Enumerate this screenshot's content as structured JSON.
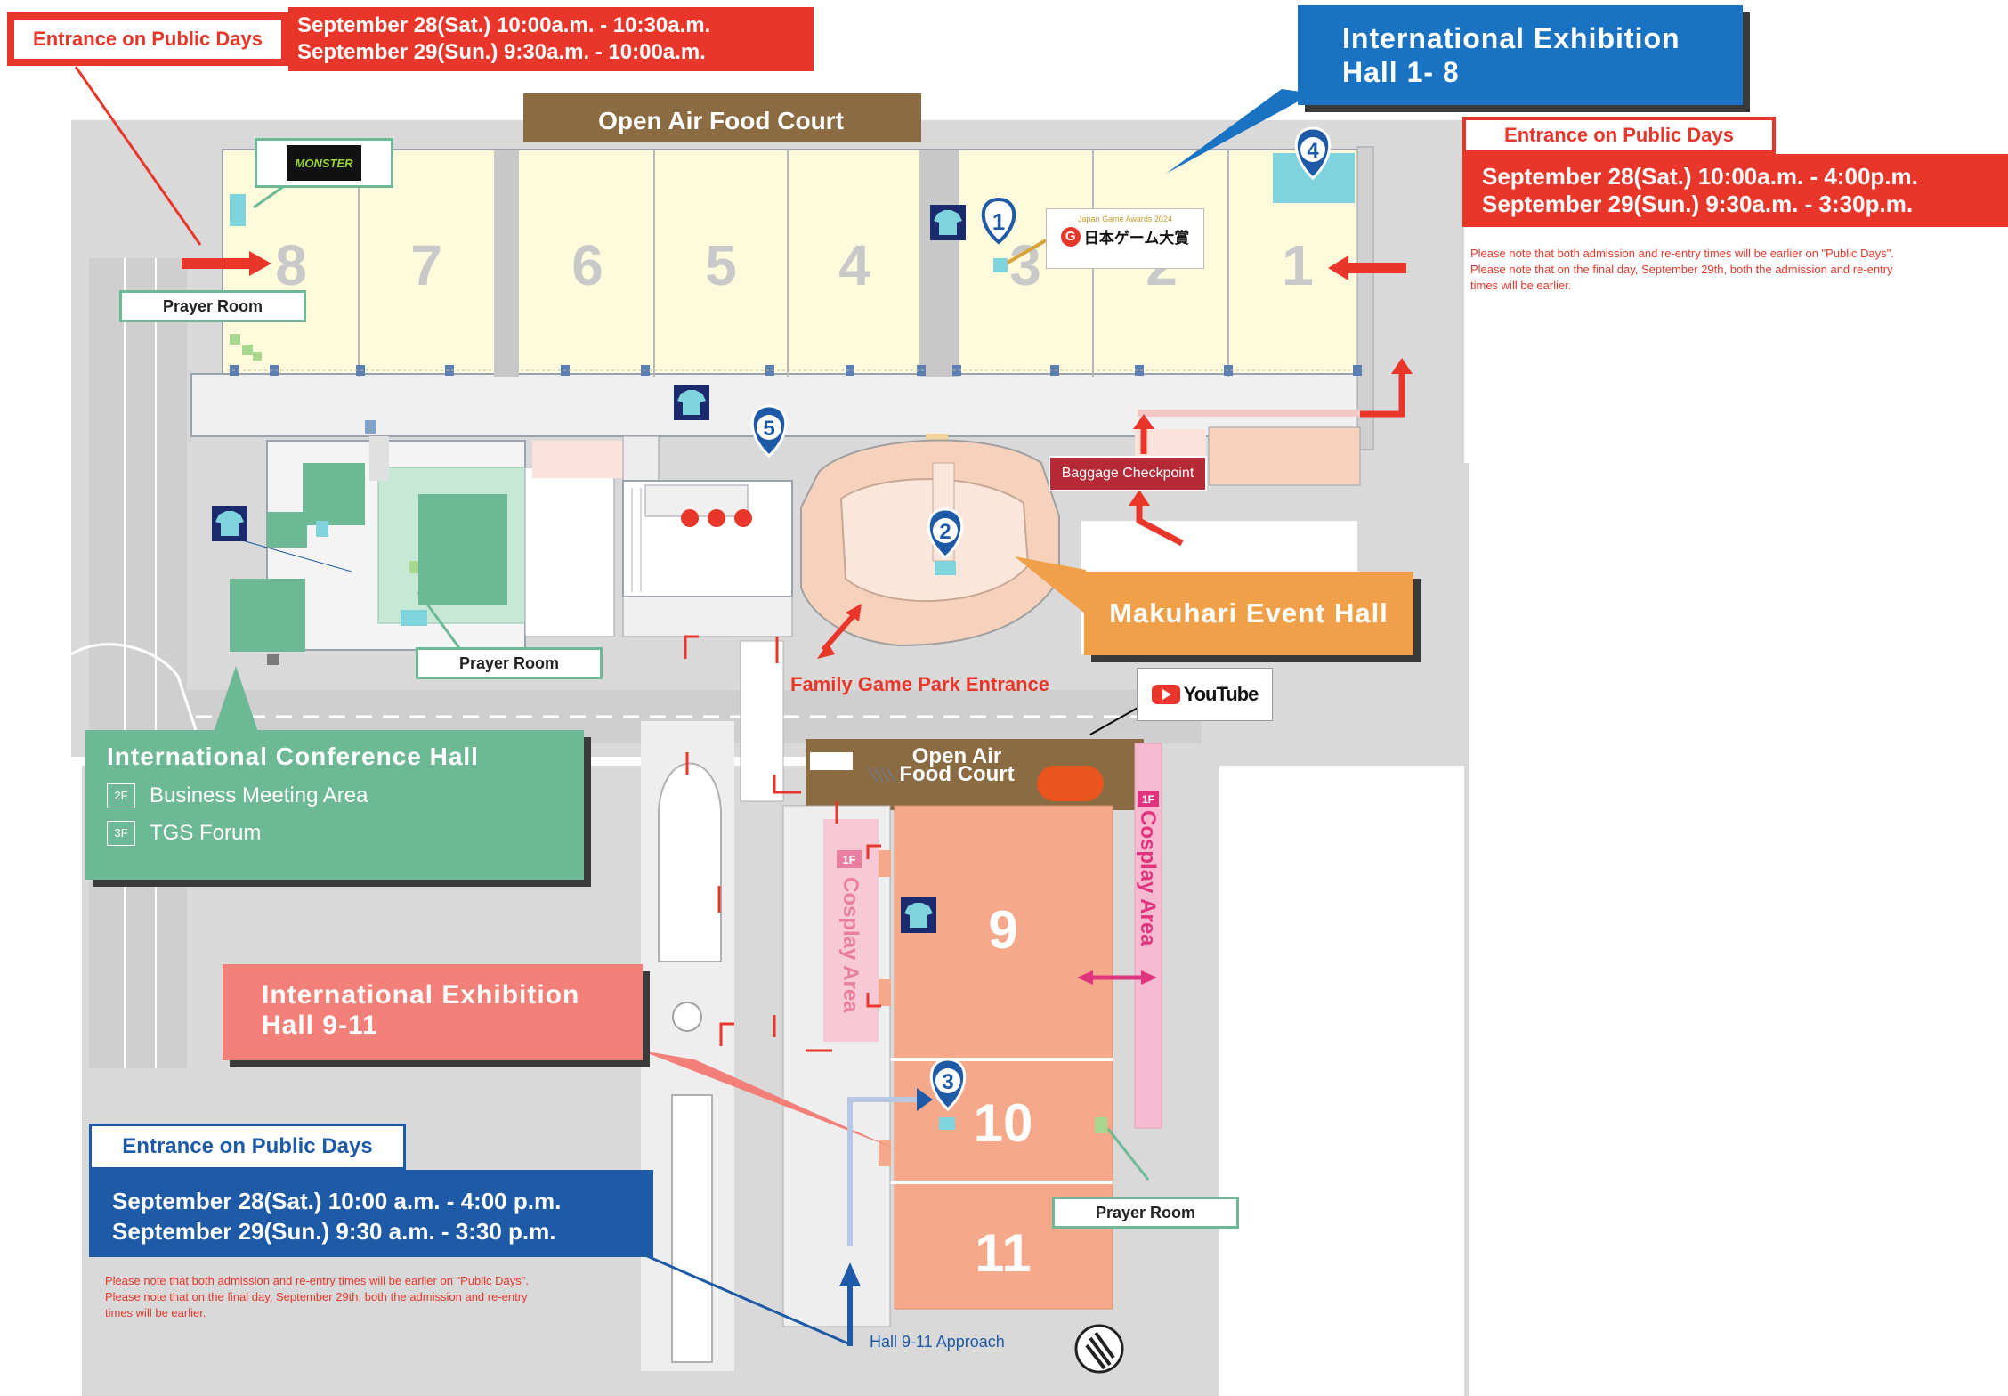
{
  "colors": {
    "red": "#e8372a",
    "blue": "#1f5aa6",
    "hall_1_8": "#fdfbdc",
    "hall_9_11": "#f5a98a",
    "conference": "#6db895",
    "event_hall": "#f6d2bd",
    "event_hall_label": "#f0a048",
    "food_court": "#8b6b42",
    "cosplay": "#f7b9cf",
    "exhibit_label_red": "#f27f78",
    "road": "#d8d8d8",
    "dark_red": "#b52a36"
  },
  "top_left_entrance": {
    "title": "Entrance on Public Days",
    "line1": "September 28(Sat.) 10:00a.m. - 10:30a.m.",
    "line2": "September 29(Sun.)  9:30a.m. - 10:00a.m."
  },
  "top_right_hall": {
    "title_line1": "International Exhibition",
    "title_line2": "Hall 1- 8"
  },
  "right_entrance": {
    "title": "Entrance on Public Days",
    "line1": "September 28(Sat.) 10:00a.m. - 4:00p.m.",
    "line2": "September 29(Sun.)  9:30a.m. - 3:30p.m.",
    "note1": "Please note that both admission and re-entry times will be earlier on \"Public Days\".",
    "note2": "Please note that on the final day, September 29th, both the admission and re-entry",
    "note3": "times will be earlier."
  },
  "bottom_left_entrance": {
    "title": "Entrance on Public Days",
    "line1": "September 28(Sat.) 10:00 a.m. - 4:00 p.m.",
    "line2": "September 29(Sun.)  9:30 a.m. - 3:30 p.m.",
    "note1": "Please note that both admission and re-entry times will be earlier on \"Public Days\".",
    "note2": "Please note that on the final day, September 29th, both the admission and re-entry",
    "note3": "times will be earlier."
  },
  "food_court_top": "Open Air Food Court",
  "food_court_bottom_line1": "Open Air",
  "food_court_bottom_line2": "Food Court",
  "hall_numbers": [
    "8",
    "7",
    "6",
    "5",
    "4",
    "3",
    "2",
    "1"
  ],
  "hall_9": "9",
  "hall_10": "10",
  "hall_11": "11",
  "prayer_room": "Prayer Room",
  "monster_logo": "MONSTER",
  "jga_logo_small": "Japan Game Awards 2024",
  "jga_logo_text": "日本ゲーム大賞",
  "baggage": "Baggage Checkpoint",
  "event_hall": "Makuhari Event Hall",
  "family_park": "Family Game Park Entrance",
  "youtube": "YouTube",
  "conference": {
    "title": "International Conference Hall",
    "floor1": "2F",
    "item1": "Business Meeting Area",
    "floor2": "3F",
    "item2": "TGS Forum"
  },
  "hall_9_11_label": {
    "line1": "International Exhibition",
    "line2": "Hall 9-11"
  },
  "cosplay": "Cosplay Area",
  "cosplay_floor": "1F",
  "approach": "Hall 9-11 Approach",
  "pins": [
    "1",
    "2",
    "3",
    "4",
    "5"
  ]
}
